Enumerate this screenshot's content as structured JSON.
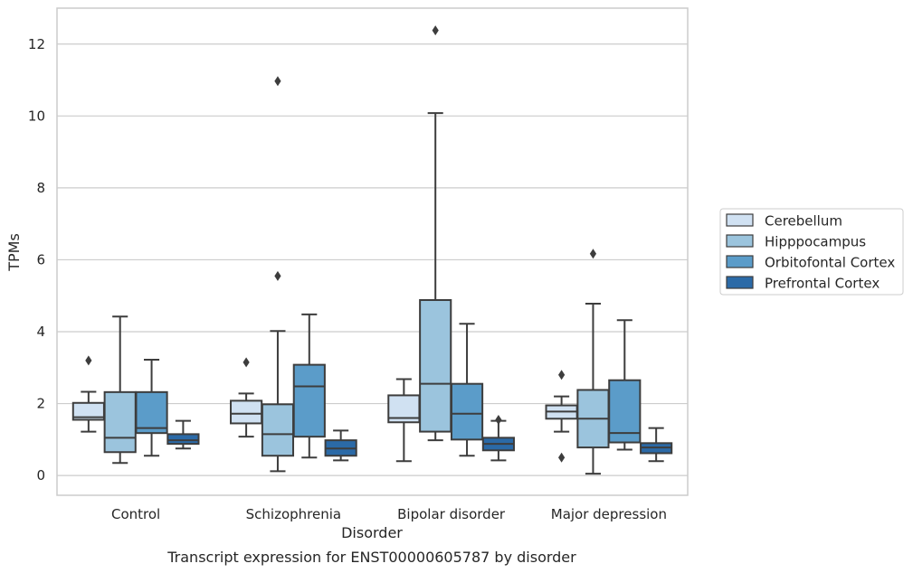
{
  "chart_data": {
    "type": "box",
    "xlabel": "Disorder",
    "ylabel": "TPMs",
    "caption": "Transcript expression for ENST00000605787 by disorder",
    "ylim": [
      -0.55,
      13.0
    ],
    "yticks": [
      0,
      2,
      4,
      6,
      8,
      10,
      12
    ],
    "grid": "horizontal",
    "legend_position": "right",
    "categories": [
      "Control",
      "Schizophrenia",
      "Bipolar disorder",
      "Major depression"
    ],
    "series": [
      {
        "name": "Cerebellum",
        "color": "#d0e1f2",
        "boxes": [
          {
            "whislo": 1.22,
            "q1": 1.55,
            "med": 1.62,
            "q3": 2.02,
            "whishi": 2.33,
            "fliers": [
              3.2
            ]
          },
          {
            "whislo": 1.08,
            "q1": 1.45,
            "med": 1.72,
            "q3": 2.08,
            "whishi": 2.28,
            "fliers": [
              3.15
            ]
          },
          {
            "whislo": 0.4,
            "q1": 1.48,
            "med": 1.6,
            "q3": 2.23,
            "whishi": 2.68,
            "fliers": []
          },
          {
            "whislo": 1.22,
            "q1": 1.58,
            "med": 1.78,
            "q3": 1.95,
            "whishi": 2.2,
            "fliers": [
              2.8,
              0.5
            ]
          }
        ]
      },
      {
        "name": "Hipppocampus",
        "color": "#9bc4dd",
        "boxes": [
          {
            "whislo": 0.35,
            "q1": 0.65,
            "med": 1.05,
            "q3": 2.32,
            "whishi": 4.42,
            "fliers": []
          },
          {
            "whislo": 0.12,
            "q1": 0.55,
            "med": 1.15,
            "q3": 1.98,
            "whishi": 4.02,
            "fliers": [
              10.97,
              5.55
            ]
          },
          {
            "whislo": 0.98,
            "q1": 1.22,
            "med": 2.55,
            "q3": 4.88,
            "whishi": 10.08,
            "fliers": [
              12.38
            ]
          },
          {
            "whislo": 0.05,
            "q1": 0.78,
            "med": 1.58,
            "q3": 2.38,
            "whishi": 4.78,
            "fliers": [
              6.17
            ]
          }
        ]
      },
      {
        "name": "Orbitofontal Cortex",
        "color": "#5b9cc9",
        "boxes": [
          {
            "whislo": 0.55,
            "q1": 1.18,
            "med": 1.32,
            "q3": 2.32,
            "whishi": 3.22,
            "fliers": []
          },
          {
            "whislo": 0.5,
            "q1": 1.08,
            "med": 2.48,
            "q3": 3.08,
            "whishi": 4.48,
            "fliers": []
          },
          {
            "whislo": 0.55,
            "q1": 1.0,
            "med": 1.72,
            "q3": 2.55,
            "whishi": 4.22,
            "fliers": []
          },
          {
            "whislo": 0.72,
            "q1": 0.92,
            "med": 1.18,
            "q3": 2.65,
            "whishi": 4.32,
            "fliers": []
          }
        ]
      },
      {
        "name": "Prefrontal Cortex",
        "color": "#2b6aa7",
        "boxes": [
          {
            "whislo": 0.75,
            "q1": 0.88,
            "med": 0.98,
            "q3": 1.15,
            "whishi": 1.52,
            "fliers": []
          },
          {
            "whislo": 0.42,
            "q1": 0.55,
            "med": 0.75,
            "q3": 0.98,
            "whishi": 1.25,
            "fliers": []
          },
          {
            "whislo": 0.42,
            "q1": 0.7,
            "med": 0.88,
            "q3": 1.05,
            "whishi": 1.52,
            "fliers": [
              1.55
            ]
          },
          {
            "whislo": 0.4,
            "q1": 0.62,
            "med": 0.78,
            "q3": 0.9,
            "whishi": 1.32,
            "fliers": []
          }
        ]
      }
    ]
  }
}
